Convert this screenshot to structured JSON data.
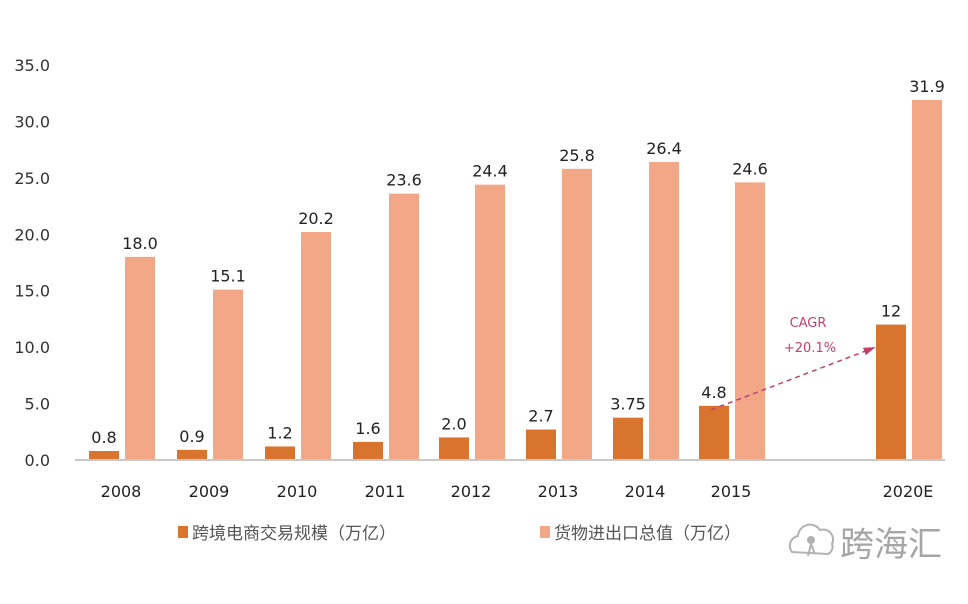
{
  "chart_data": {
    "type": "bar",
    "categories": [
      "2008",
      "2009",
      "2010",
      "2011",
      "2012",
      "2013",
      "2014",
      "2015",
      "2020E"
    ],
    "series": [
      {
        "name": "跨境电商交易规模（万亿）",
        "values": [
          0.8,
          0.9,
          1.2,
          1.6,
          2.0,
          2.7,
          3.75,
          4.8,
          12
        ],
        "labels": [
          "0.8",
          "0.9",
          "1.2",
          "1.6",
          "2.0",
          "2.7",
          "3.75",
          "4.8",
          "12"
        ],
        "color": "#D9742E"
      },
      {
        "name": "货物进出口总值（万亿）",
        "values": [
          18.0,
          15.1,
          20.2,
          23.6,
          24.4,
          25.8,
          26.4,
          24.6,
          31.9
        ],
        "labels": [
          "18.0",
          "15.1",
          "20.2",
          "23.6",
          "24.4",
          "25.8",
          "26.4",
          "24.6",
          "31.9"
        ],
        "color": "#F2A886"
      }
    ],
    "yticks": [
      "0.0",
      "5.0",
      "10.0",
      "15.0",
      "20.0",
      "25.0",
      "30.0",
      "35.0"
    ],
    "ylim": [
      0,
      35
    ],
    "grid": false,
    "legend": "bottom",
    "annotation": {
      "line1": "CAGR",
      "line2": "+20.1%",
      "from": "2015",
      "to": "2020E",
      "color": "#C2406E"
    }
  },
  "watermark": {
    "text": "跨海汇"
  }
}
